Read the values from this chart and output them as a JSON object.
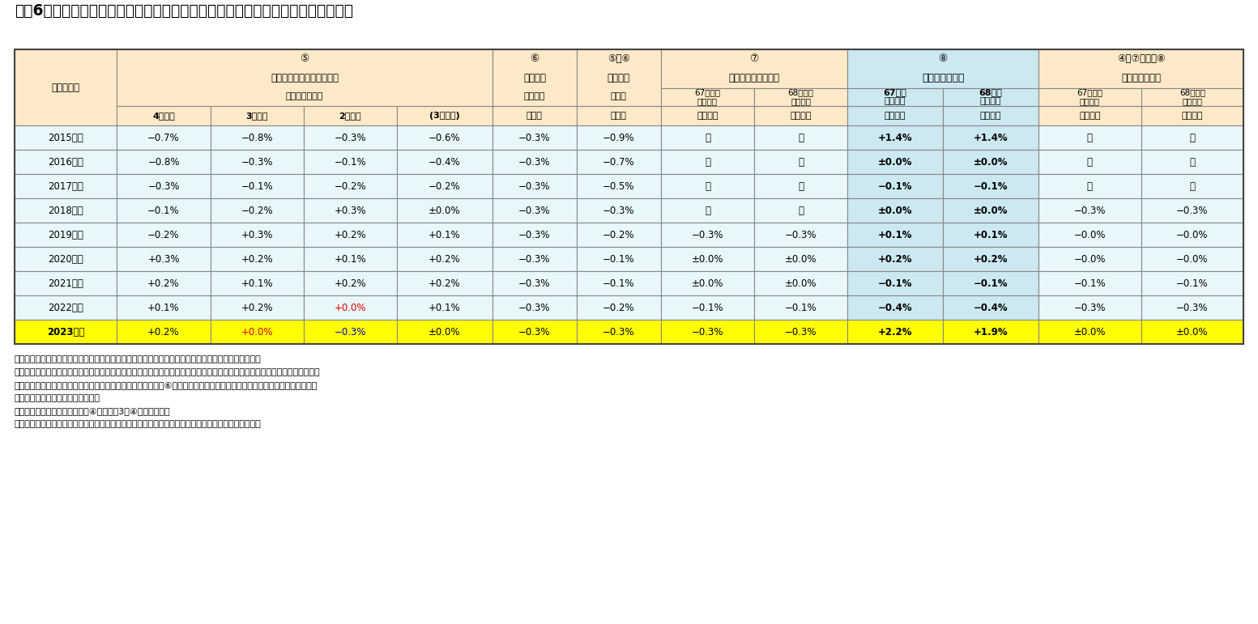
{
  "title": "図表6　年金財政健全化のための調整（いわゆるマクロ経済スライド）の計算過程",
  "bg_color": "#ffffff",
  "light_orange": "#fde9c8",
  "col8_bg": "#cce8f0",
  "data_bg": "#e8f7fa",
  "yellow": "#ffff00",
  "border": "#888888",
  "rows": [
    {
      "year": "2015年度",
      "c1": "−0.7%",
      "c2": "−0.8%",
      "c3": "−0.3%",
      "c4": "−0.6%",
      "c5": "−0.3%",
      "c6": "−0.9%",
      "c7": "－",
      "c8": "－",
      "c9": "+1.4%",
      "c10": "+1.4%",
      "c11": "－",
      "c12": "－",
      "yellow": false,
      "c3_red": false,
      "c2_red": false,
      "c3_blue": false
    },
    {
      "year": "2016年度",
      "c1": "−0.8%",
      "c2": "−0.3%",
      "c3": "−0.1%",
      "c4": "−0.4%",
      "c5": "−0.3%",
      "c6": "−0.7%",
      "c7": "－",
      "c8": "－",
      "c9": "±0.0%",
      "c10": "±0.0%",
      "c11": "－",
      "c12": "－",
      "yellow": false,
      "c3_red": false,
      "c2_red": false,
      "c3_blue": false
    },
    {
      "year": "2017年度",
      "c1": "−0.3%",
      "c2": "−0.1%",
      "c3": "−0.2%",
      "c4": "−0.2%",
      "c5": "−0.3%",
      "c6": "−0.5%",
      "c7": "－",
      "c8": "－",
      "c9": "−0.1%",
      "c10": "−0.1%",
      "c11": "－",
      "c12": "－",
      "yellow": false,
      "c3_red": false,
      "c2_red": false,
      "c3_blue": false
    },
    {
      "year": "2018年度",
      "c1": "−0.1%",
      "c2": "−0.2%",
      "c3": "+0.3%",
      "c4": "±0.0%",
      "c5": "−0.3%",
      "c6": "−0.3%",
      "c7": "－",
      "c8": "－",
      "c9": "±0.0%",
      "c10": "±0.0%",
      "c11": "−0.3%",
      "c12": "−0.3%",
      "yellow": false,
      "c3_red": false,
      "c2_red": false,
      "c3_blue": false
    },
    {
      "year": "2019年度",
      "c1": "−0.2%",
      "c2": "+0.3%",
      "c3": "+0.2%",
      "c4": "+0.1%",
      "c5": "−0.3%",
      "c6": "−0.2%",
      "c7": "−0.3%",
      "c8": "−0.3%",
      "c9": "+0.1%",
      "c10": "+0.1%",
      "c11": "−0.0%",
      "c12": "−0.0%",
      "yellow": false,
      "c3_red": false,
      "c2_red": false,
      "c3_blue": false
    },
    {
      "year": "2020年度",
      "c1": "+0.3%",
      "c2": "+0.2%",
      "c3": "+0.1%",
      "c4": "+0.2%",
      "c5": "−0.3%",
      "c6": "−0.1%",
      "c7": "±0.0%",
      "c8": "±0.0%",
      "c9": "+0.2%",
      "c10": "+0.2%",
      "c11": "−0.0%",
      "c12": "−0.0%",
      "yellow": false,
      "c3_red": false,
      "c2_red": false,
      "c3_blue": false
    },
    {
      "year": "2021年度",
      "c1": "+0.2%",
      "c2": "+0.1%",
      "c3": "+0.2%",
      "c4": "+0.2%",
      "c5": "−0.3%",
      "c6": "−0.1%",
      "c7": "±0.0%",
      "c8": "±0.0%",
      "c9": "−0.1%",
      "c10": "−0.1%",
      "c11": "−0.1%",
      "c12": "−0.1%",
      "yellow": false,
      "c3_red": false,
      "c2_red": false,
      "c3_blue": false
    },
    {
      "year": "2022年度",
      "c1": "+0.1%",
      "c2": "+0.2%",
      "c3": "+0.0%",
      "c4": "+0.1%",
      "c5": "−0.3%",
      "c6": "−0.2%",
      "c7": "−0.1%",
      "c8": "−0.1%",
      "c9": "−0.4%",
      "c10": "−0.4%",
      "c11": "−0.3%",
      "c12": "−0.3%",
      "yellow": false,
      "c3_red": true,
      "c2_red": false,
      "c3_blue": false
    },
    {
      "year": "2023年度",
      "c1": "+0.2%",
      "c2": "+0.0%",
      "c3": "−0.3%",
      "c4": "±0.0%",
      "c5": "−0.3%",
      "c6": "−0.3%",
      "c7": "−0.3%",
      "c8": "−0.3%",
      "c9": "+2.2%",
      "c10": "+1.9%",
      "c11": "±0.0%",
      "c12": "±0.0%",
      "yellow": true,
      "c3_red": false,
      "c2_red": true,
      "c3_blue": true
    }
  ],
  "note_lines": [
    "（注１）　変化率（％）の加減算で表しているが、厳密には１を基準とした値の掛け算で計算される。",
    "（注２）　公的年金加入者数の変動率の内訳は、下記の資料から筆者が推計した値（制度上は、２年度前の加入者数を５年度前",
    "　　　　の加入者数で除した値の３乗根として計算される）。⑥平均寿命の伸び率の欄は、計算過程を足し算で示すためにマ",
    "　　　　イナスにした値を載せた。",
    "（注３）　最右列の表頭にある④は、図表3の④の列を指す。",
    "（資料）　厚生労働省年金局「年金額改定について」（各年）、社会保障審議会数理部会資料（各回）"
  ]
}
